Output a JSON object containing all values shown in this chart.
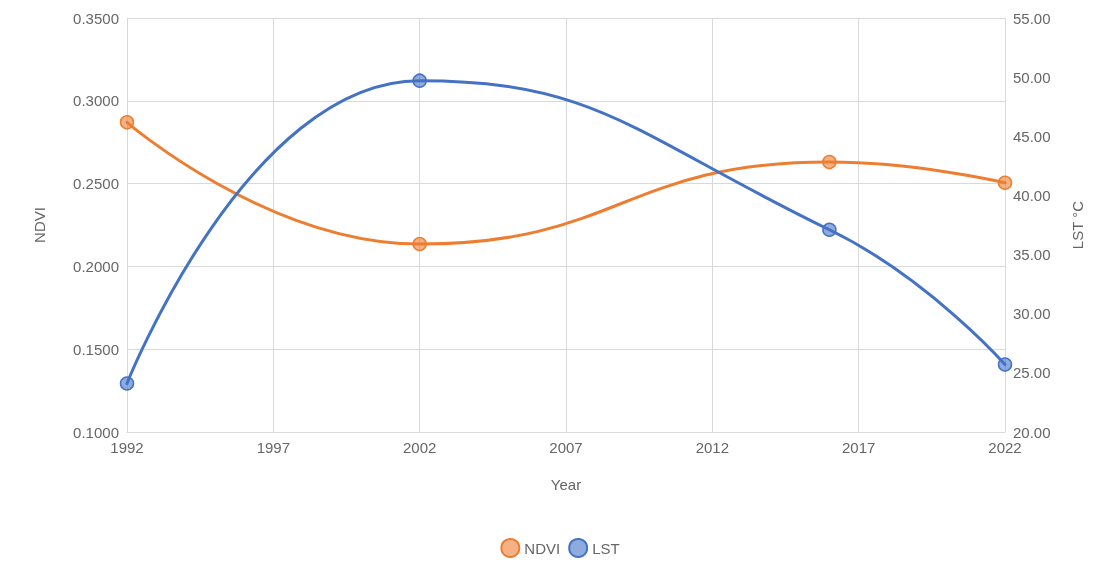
{
  "chart_data": {
    "type": "line",
    "xlabel": "Year",
    "ylabel": "NDVI",
    "y2label": "LST °C",
    "x": [
      1992,
      2002,
      2016,
      2022
    ],
    "series": [
      {
        "name": "NDVI",
        "color": "#ed7d31",
        "values": [
          0.287,
          0.2135,
          0.263,
          0.2505
        ]
      },
      {
        "name": "LST",
        "color": "#4472c4",
        "axis": "y2",
        "values": [
          24.1,
          49.7,
          37.1,
          25.7
        ]
      }
    ],
    "xlim": [
      1992,
      2022
    ],
    "xticks": [
      1992,
      1997,
      2002,
      2007,
      2012,
      2017,
      2022
    ],
    "ylim": [
      0.1,
      0.35
    ],
    "yticks": [
      {
        "value": 0.1,
        "label": "0.1000"
      },
      {
        "value": 0.15,
        "label": "0.1500"
      },
      {
        "value": 0.2,
        "label": "0.2000"
      },
      {
        "value": 0.25,
        "label": "0.2500"
      },
      {
        "value": 0.3,
        "label": "0.3000"
      },
      {
        "value": 0.35,
        "label": "0.3500"
      }
    ],
    "y2lim": [
      20,
      55
    ],
    "y2ticks": [
      {
        "value": 20,
        "label": "20.00"
      },
      {
        "value": 25,
        "label": "25.00"
      },
      {
        "value": 30,
        "label": "30.00"
      },
      {
        "value": 35,
        "label": "35.00"
      },
      {
        "value": 40,
        "label": "40.00"
      },
      {
        "value": 45,
        "label": "45.00"
      },
      {
        "value": 50,
        "label": "50.00"
      },
      {
        "value": 55,
        "label": "55.00"
      }
    ],
    "grid": true,
    "legend": "bottom",
    "marker": "circle",
    "line_style": "solid"
  }
}
